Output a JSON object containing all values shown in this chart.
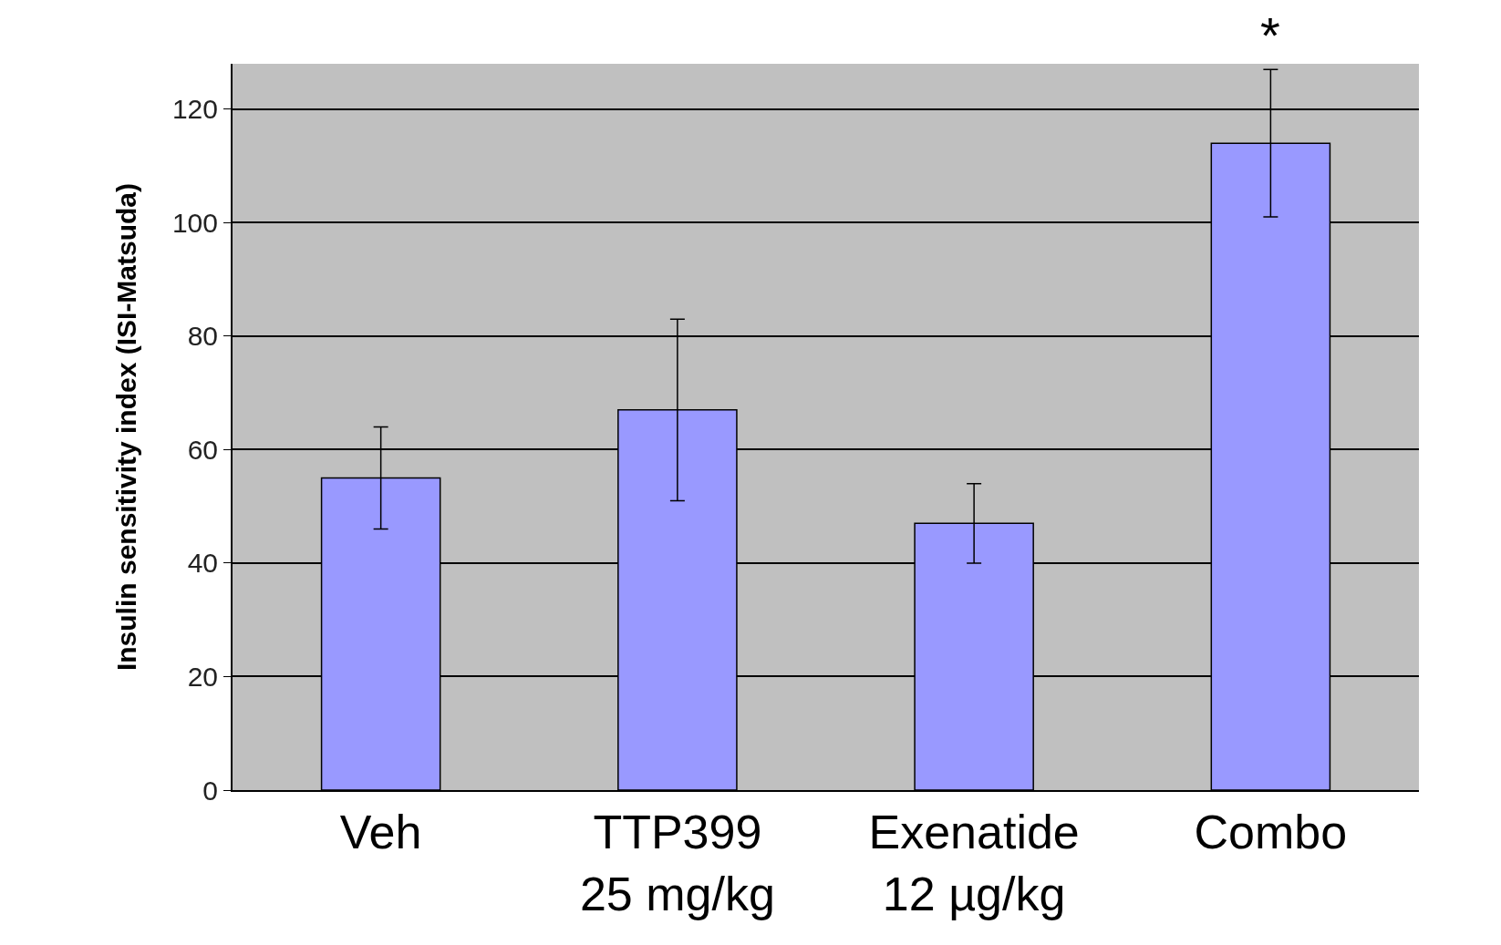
{
  "chart_data": {
    "type": "bar",
    "ylabel": "Insulin sensitivity index (ISI-Matsuda)",
    "categories": [
      "Veh",
      "TTP399\n25 mg/kg",
      "Exenatide\n12 µg/kg",
      "Combo"
    ],
    "values": [
      55,
      67,
      47,
      114
    ],
    "errors": [
      9,
      16,
      7,
      13
    ],
    "color": "#9999ff",
    "ylim": [
      0,
      128
    ],
    "yticks": [
      0,
      20,
      40,
      60,
      80,
      100,
      120
    ],
    "grid": "y",
    "annotations": [
      {
        "text": "*",
        "x": "Combo",
        "y": 127
      }
    ]
  }
}
